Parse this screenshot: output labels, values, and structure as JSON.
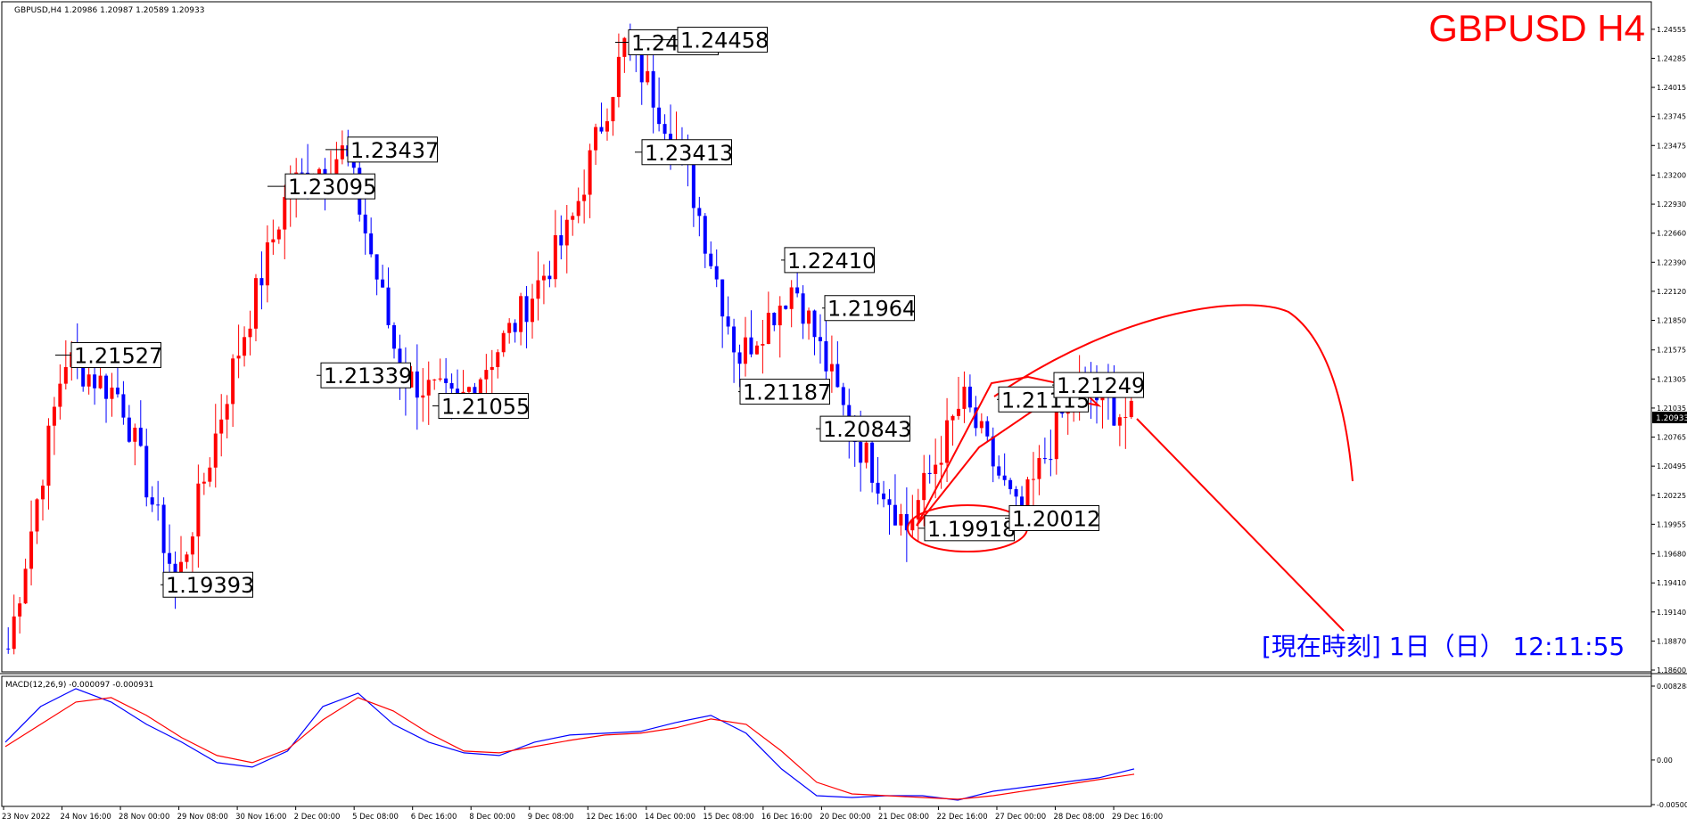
{
  "header": {
    "symbol_info": "GBPUSD,H4  1.20986 1.20987 1.20589 1.20933",
    "big_title": "GBPUSD H4",
    "current_time_label": "[現在時刻] 1日（日） 12:11:55",
    "current_price_tag": "1.20933"
  },
  "colors": {
    "bull": "#ff0000",
    "bear": "#0000ff",
    "title": "#ff0000",
    "time_label": "#0000ff",
    "annotation": "#ff0000",
    "macd_line": "#0000ff",
    "signal_line": "#ff0000",
    "current_price_bg": "#000000"
  },
  "chart_data": [
    {
      "type": "candlestick",
      "symbol": "GBPUSD",
      "timeframe": "H4",
      "ylim": [
        1.186,
        1.2462
      ],
      "y_ticks": [
        "1.24555",
        "1.24285",
        "1.24015",
        "1.23745",
        "1.23475",
        "1.23200",
        "1.22930",
        "1.22660",
        "1.22390",
        "1.22120",
        "1.21850",
        "1.21575",
        "1.21305",
        "1.21035",
        "1.20765",
        "1.20495",
        "1.20225",
        "1.19955",
        "1.19680",
        "1.19410",
        "1.19140",
        "1.18870",
        "1.18600"
      ],
      "x_ticks": [
        "23 Nov 2022",
        "24 Nov 16:00",
        "28 Nov 00:00",
        "29 Nov 08:00",
        "30 Nov 16:00",
        "2 Dec 00:00",
        "5 Dec 08:00",
        "6 Dec 16:00",
        "8 Dec 00:00",
        "9 Dec 08:00",
        "12 Dec 16:00",
        "14 Dec 00:00",
        "15 Dec 08:00",
        "16 Dec 16:00",
        "20 Dec 00:00",
        "21 Dec 08:00",
        "22 Dec 16:00",
        "27 Dec 00:00",
        "28 Dec 08:00",
        "29 Dec 16:00"
      ],
      "anchors": [
        1.188,
        1.215,
        1.2115,
        1.1939,
        1.214,
        1.2309,
        1.2343,
        1.2134,
        1.2106,
        1.218,
        1.227,
        1.2445,
        1.2341,
        1.215,
        1.222,
        1.2084,
        1.1992,
        1.2112,
        1.2001,
        1.2125,
        1.2093
      ],
      "price_labels": [
        {
          "text": "1.21527",
          "value": 1.21527
        },
        {
          "text": "1.19393",
          "value": 1.19393
        },
        {
          "text": "1.23095",
          "value": 1.23095
        },
        {
          "text": "1.23437",
          "value": 1.23437
        },
        {
          "text": "1.21339",
          "value": 1.21339
        },
        {
          "text": "1.21055",
          "value": 1.21055
        },
        {
          "text": "1.24434",
          "value": 1.24434
        },
        {
          "text": "1.24458",
          "value": 1.24458
        },
        {
          "text": "1.23413",
          "value": 1.23413
        },
        {
          "text": "1.22410",
          "value": 1.2241
        },
        {
          "text": "1.21964",
          "value": 1.21964
        },
        {
          "text": "1.21187",
          "value": 1.21187
        },
        {
          "text": "1.20843",
          "value": 1.20843
        },
        {
          "text": "1.21115",
          "value": 1.21115
        },
        {
          "text": "1.21249",
          "value": 1.21249
        },
        {
          "text": "1.19918",
          "value": 1.19918
        },
        {
          "text": "1.20012",
          "value": 1.20012
        }
      ]
    },
    {
      "type": "line",
      "title": "MACD(12,26,9) -0.000097 -0.000931",
      "y_ticks": [
        "0.008288",
        "0.00",
        "-0.005004"
      ],
      "ylim": [
        -0.005004,
        0.008288
      ],
      "series": [
        {
          "name": "MACD",
          "values": [
            0.002,
            0.006,
            0.008,
            0.0065,
            0.004,
            0.002,
            -0.0003,
            -0.0008,
            0.001,
            0.006,
            0.0075,
            0.004,
            0.002,
            0.0008,
            0.0005,
            0.002,
            0.0028,
            0.003,
            0.0032,
            0.0042,
            0.005,
            0.003,
            -0.001,
            -0.004,
            -0.0042,
            -0.004,
            -0.004,
            -0.0045,
            -0.0035,
            -0.003,
            -0.0025,
            -0.002,
            -0.001
          ]
        },
        {
          "name": "Signal",
          "values": [
            0.0015,
            0.004,
            0.0065,
            0.007,
            0.005,
            0.0025,
            0.0005,
            -0.0003,
            0.0012,
            0.0045,
            0.007,
            0.0055,
            0.003,
            0.001,
            0.0008,
            0.0015,
            0.0022,
            0.0028,
            0.003,
            0.0036,
            0.0046,
            0.004,
            0.001,
            -0.0025,
            -0.0038,
            -0.004,
            -0.0042,
            -0.0044,
            -0.004,
            -0.0034,
            -0.0028,
            -0.0022,
            -0.0016
          ]
        }
      ]
    }
  ]
}
